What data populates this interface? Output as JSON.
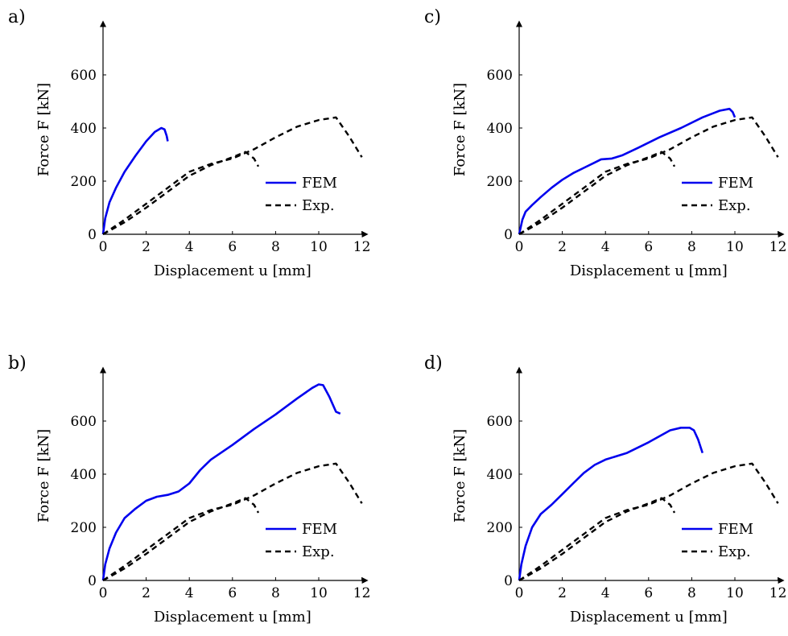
{
  "chart_data": [
    {
      "type": "line",
      "panel_label": "a)",
      "xlabel": "Displacement u [mm]",
      "ylabel": "Force F [kN]",
      "xlim": [
        0,
        12
      ],
      "ylim": [
        0,
        750
      ],
      "xticks": [
        0,
        2,
        4,
        6,
        8,
        10,
        12
      ],
      "yticks": [
        0,
        200,
        400,
        600
      ],
      "grid": false,
      "legend_placement": "lower-right",
      "series": [
        {
          "name": "FEM",
          "color": "#0000ee",
          "style": "solid",
          "x": [
            0,
            0.1,
            0.3,
            0.6,
            1.0,
            1.5,
            2.0,
            2.4,
            2.7,
            2.85,
            2.95,
            3.0
          ],
          "y": [
            0,
            60,
            120,
            175,
            235,
            295,
            350,
            385,
            400,
            395,
            370,
            350
          ]
        },
        {
          "name": "Exp.",
          "color": "#000000",
          "style": "dashed",
          "x": [
            0,
            1,
            2,
            3,
            4,
            5,
            6,
            7,
            8,
            9,
            10,
            10.8,
            11.4,
            12
          ],
          "y": [
            0,
            55,
            115,
            175,
            235,
            265,
            285,
            320,
            365,
            405,
            430,
            440,
            370,
            290
          ]
        },
        {
          "name": "Exp.",
          "color": "#000000",
          "style": "dashed",
          "x": [
            0,
            1,
            2,
            3,
            4,
            5,
            6,
            6.6,
            7.0,
            7.2
          ],
          "y": [
            0,
            45,
            100,
            160,
            220,
            260,
            290,
            310,
            285,
            255
          ]
        }
      ]
    },
    {
      "type": "line",
      "panel_label": "c)",
      "xlabel": "Displacement u [mm]",
      "ylabel": "Force F [kN]",
      "xlim": [
        0,
        12
      ],
      "ylim": [
        0,
        750
      ],
      "xticks": [
        0,
        2,
        4,
        6,
        8,
        10,
        12
      ],
      "yticks": [
        0,
        200,
        400,
        600
      ],
      "grid": false,
      "legend_placement": "lower-right",
      "series": [
        {
          "name": "FEM",
          "color": "#0000ee",
          "style": "solid",
          "x": [
            0,
            0.15,
            0.3,
            0.6,
            1.0,
            1.5,
            2.0,
            2.5,
            3.0,
            3.5,
            3.8,
            4.3,
            4.8,
            5.5,
            6.5,
            7.5,
            8.5,
            9.3,
            9.75,
            9.9,
            10.0
          ],
          "y": [
            0,
            55,
            85,
            110,
            140,
            175,
            205,
            230,
            250,
            270,
            282,
            285,
            298,
            325,
            365,
            400,
            440,
            465,
            472,
            460,
            440
          ]
        },
        {
          "name": "Exp.",
          "color": "#000000",
          "style": "dashed",
          "x": [
            0,
            1,
            2,
            3,
            4,
            5,
            6,
            7,
            8,
            9,
            10,
            10.8,
            11.4,
            12
          ],
          "y": [
            0,
            55,
            115,
            175,
            235,
            265,
            285,
            320,
            365,
            405,
            430,
            440,
            370,
            290
          ]
        },
        {
          "name": "Exp.",
          "color": "#000000",
          "style": "dashed",
          "x": [
            0,
            1,
            2,
            3,
            4,
            5,
            6,
            6.6,
            7.0,
            7.2
          ],
          "y": [
            0,
            45,
            100,
            160,
            220,
            260,
            290,
            310,
            285,
            255
          ]
        }
      ]
    },
    {
      "type": "line",
      "panel_label": "b)",
      "xlabel": "Displacement u [mm]",
      "ylabel": "Force F [kN]",
      "xlim": [
        0,
        12
      ],
      "ylim": [
        0,
        750
      ],
      "xticks": [
        0,
        2,
        4,
        6,
        8,
        10,
        12
      ],
      "yticks": [
        0,
        200,
        400,
        600
      ],
      "grid": false,
      "legend_placement": "lower-right",
      "series": [
        {
          "name": "FEM",
          "color": "#0000ee",
          "style": "solid",
          "x": [
            0,
            0.1,
            0.3,
            0.6,
            1.0,
            1.5,
            2.0,
            2.5,
            3.0,
            3.5,
            4.0,
            4.5,
            5.0,
            6.0,
            7.0,
            8.0,
            9.0,
            9.7,
            10.0,
            10.2,
            10.5,
            10.8,
            11.0
          ],
          "y": [
            0,
            60,
            120,
            180,
            235,
            270,
            300,
            315,
            322,
            335,
            365,
            415,
            455,
            510,
            570,
            625,
            685,
            725,
            738,
            735,
            690,
            635,
            628
          ]
        },
        {
          "name": "Exp.",
          "color": "#000000",
          "style": "dashed",
          "x": [
            0,
            1,
            2,
            3,
            4,
            5,
            6,
            7,
            8,
            9,
            10,
            10.8,
            11.4,
            12
          ],
          "y": [
            0,
            55,
            115,
            175,
            235,
            265,
            285,
            320,
            365,
            405,
            430,
            440,
            370,
            290
          ]
        },
        {
          "name": "Exp.",
          "color": "#000000",
          "style": "dashed",
          "x": [
            0,
            1,
            2,
            3,
            4,
            5,
            6,
            6.6,
            7.0,
            7.2
          ],
          "y": [
            0,
            45,
            100,
            160,
            220,
            260,
            290,
            310,
            285,
            255
          ]
        }
      ]
    },
    {
      "type": "line",
      "panel_label": "d)",
      "xlabel": "Displacement u [mm]",
      "ylabel": "Force F [kN]",
      "xlim": [
        0,
        12
      ],
      "ylim": [
        0,
        750
      ],
      "xticks": [
        0,
        2,
        4,
        6,
        8,
        10,
        12
      ],
      "yticks": [
        0,
        200,
        400,
        600
      ],
      "grid": false,
      "legend_placement": "lower-right",
      "series": [
        {
          "name": "FEM",
          "color": "#0000ee",
          "style": "solid",
          "x": [
            0,
            0.1,
            0.3,
            0.6,
            1.0,
            1.5,
            2.0,
            2.5,
            3.0,
            3.5,
            4.0,
            5.0,
            6.0,
            7.0,
            7.5,
            7.9,
            8.1,
            8.3,
            8.5
          ],
          "y": [
            0,
            60,
            130,
            200,
            250,
            285,
            325,
            365,
            405,
            435,
            455,
            480,
            520,
            565,
            575,
            575,
            565,
            530,
            480
          ]
        },
        {
          "name": "Exp.",
          "color": "#000000",
          "style": "dashed",
          "x": [
            0,
            1,
            2,
            3,
            4,
            5,
            6,
            7,
            8,
            9,
            10,
            10.8,
            11.4,
            12
          ],
          "y": [
            0,
            55,
            115,
            175,
            235,
            265,
            285,
            320,
            365,
            405,
            430,
            440,
            370,
            290
          ]
        },
        {
          "name": "Exp.",
          "color": "#000000",
          "style": "dashed",
          "x": [
            0,
            1,
            2,
            3,
            4,
            5,
            6,
            6.6,
            7.0,
            7.2
          ],
          "y": [
            0,
            45,
            100,
            160,
            220,
            260,
            290,
            310,
            285,
            255
          ]
        }
      ]
    }
  ]
}
